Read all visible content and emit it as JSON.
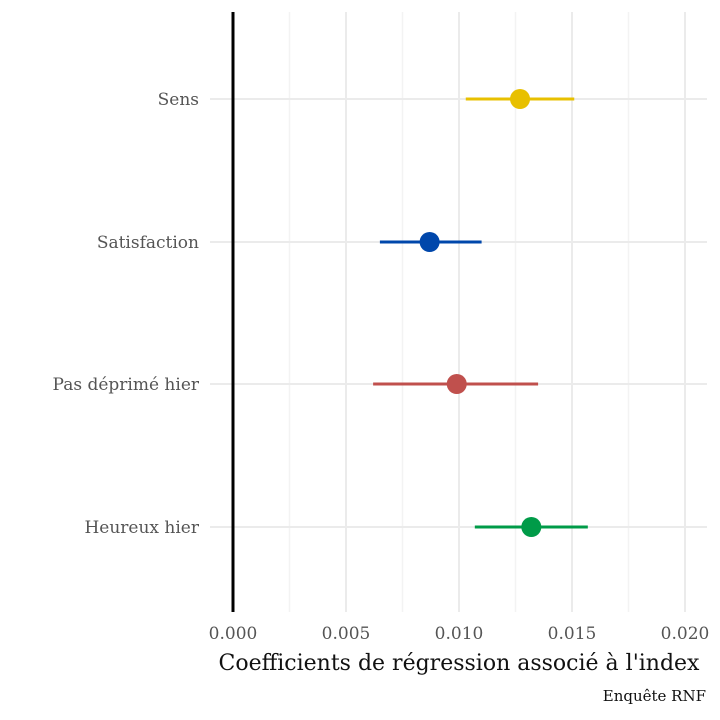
{
  "chart_data": {
    "type": "scatter",
    "subtype": "coefficient-plot",
    "title": "",
    "xlabel": "Coefficients de régression associé à l'index",
    "ylabel": "",
    "caption": "Enquête RNF",
    "xlim": [
      0.0,
      0.0208
    ],
    "xticks": [
      0.0,
      0.005,
      0.01,
      0.015,
      0.02
    ],
    "xtick_labels": [
      "0.000",
      "0.005",
      "0.010",
      "0.015",
      "0.020"
    ],
    "grid": true,
    "reference_line_x": 0.0,
    "categories": [
      "Sens",
      "Satisfaction",
      "Pas déprimé hier",
      "Heureux hier"
    ],
    "points": [
      {
        "label": "Sens",
        "estimate": 0.0127,
        "low": 0.0103,
        "high": 0.0151,
        "color": "#E8C000"
      },
      {
        "label": "Satisfaction",
        "estimate": 0.0087,
        "low": 0.0065,
        "high": 0.011,
        "color": "#0047AB"
      },
      {
        "label": "Pas déprimé hier",
        "estimate": 0.0099,
        "low": 0.0062,
        "high": 0.0135,
        "color": "#C0504D"
      },
      {
        "label": "Heureux hier",
        "estimate": 0.0132,
        "low": 0.0107,
        "high": 0.0157,
        "color": "#009B48"
      }
    ]
  }
}
